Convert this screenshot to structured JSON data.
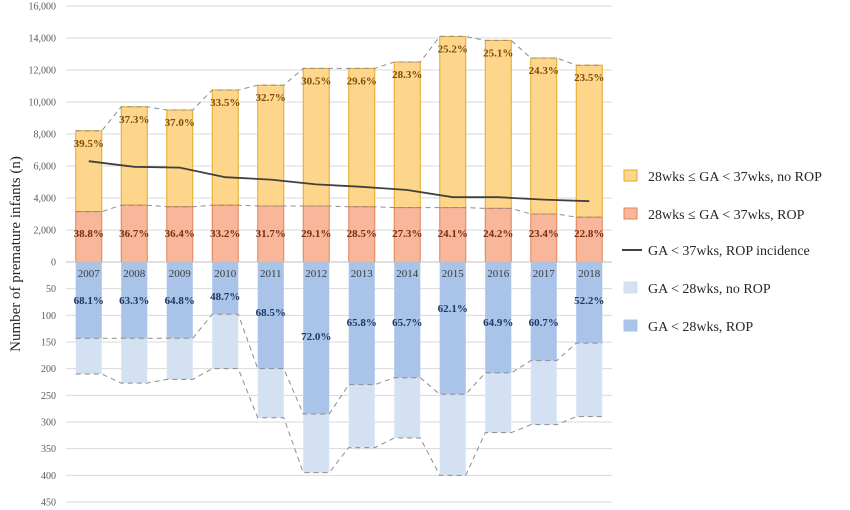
{
  "chart_data": {
    "type": "bar",
    "ylabel": "Number of premature infants  (n)",
    "categories": [
      "2007",
      "2008",
      "2009",
      "2010",
      "2011",
      "2012",
      "2013",
      "2014",
      "2015",
      "2016",
      "2017",
      "2018"
    ],
    "upper_axis": {
      "ylim": [
        0,
        16000
      ],
      "ticks": [
        "0",
        "2,000",
        "4,000",
        "6,000",
        "8,000",
        "10,000",
        "12,000",
        "14,000",
        "16,000"
      ]
    },
    "lower_axis": {
      "ylim": [
        0,
        450
      ],
      "ticks": [
        "0",
        "50",
        "100",
        "150",
        "200",
        "250",
        "300",
        "350",
        "400",
        "450"
      ]
    },
    "series": [
      {
        "name": "28wks ≤ GA < 37wks, no ROP",
        "axis": "upper",
        "color": "#fdd68c",
        "border": "#e5a823",
        "total": [
          8200,
          9700,
          9500,
          10750,
          11050,
          12100,
          12100,
          12500,
          14100,
          13850,
          12750,
          12300
        ],
        "labels": [
          "39.5%",
          "37.3%",
          "37.0%",
          "33.5%",
          "32.7%",
          "30.5%",
          "29.6%",
          "28.3%",
          "25.2%",
          "25.1%",
          "24.3%",
          "23.5%"
        ]
      },
      {
        "name": "28wks ≤ GA < 37wks, ROP",
        "axis": "upper",
        "color": "#f8b79a",
        "border": "#e0845a",
        "values": [
          3150,
          3550,
          3450,
          3550,
          3500,
          3500,
          3450,
          3400,
          3400,
          3350,
          3000,
          2800
        ],
        "labels": [
          "38.8%",
          "36.7%",
          "36.4%",
          "33.2%",
          "31.7%",
          "29.1%",
          "28.5%",
          "27.3%",
          "24.1%",
          "24.2%",
          "23.4%",
          "22.8%"
        ]
      },
      {
        "name": "GA < 37wks, ROP incidence",
        "axis": "upper",
        "type": "line",
        "color": "#404040",
        "values": [
          6300,
          5950,
          5900,
          5300,
          5150,
          4850,
          4700,
          4500,
          4050,
          4050,
          3900,
          3800
        ]
      },
      {
        "name": "GA < 28wks, no ROP",
        "axis": "lower",
        "color": "#d4e1f3",
        "total": [
          210,
          227,
          220,
          200,
          292,
          395,
          348,
          330,
          400,
          320,
          305,
          290
        ]
      },
      {
        "name": "GA < 28wks, ROP",
        "axis": "lower",
        "color": "#a9c4e8",
        "values": [
          143,
          143,
          143,
          98,
          200,
          285,
          230,
          217,
          248,
          208,
          185,
          152
        ],
        "labels": [
          "68.1%",
          "63.3%",
          "64.8%",
          "48.7%",
          "68.5%",
          "72.0%",
          "65.8%",
          "65.7%",
          "62.1%",
          "64.9%",
          "60.7%",
          "52.2%"
        ]
      }
    ],
    "legend": {
      "position": "right",
      "items": [
        {
          "label": "28wks ≤ GA < 37wks, no ROP",
          "symbol": "box",
          "color": "#fdd68c",
          "border": "#e5a823"
        },
        {
          "label": "28wks ≤ GA < 37wks, ROP",
          "symbol": "box",
          "color": "#f8b79a",
          "border": "#e0845a"
        },
        {
          "label": "GA < 37wks, ROP incidence",
          "symbol": "line",
          "color": "#404040"
        },
        {
          "label": "GA < 28wks, no ROP",
          "symbol": "box",
          "color": "#d4e1f3",
          "border": "#d4e1f3"
        },
        {
          "label": "GA < 28wks, ROP",
          "symbol": "box",
          "color": "#a9c4e8",
          "border": "#a9c4e8"
        }
      ]
    }
  }
}
